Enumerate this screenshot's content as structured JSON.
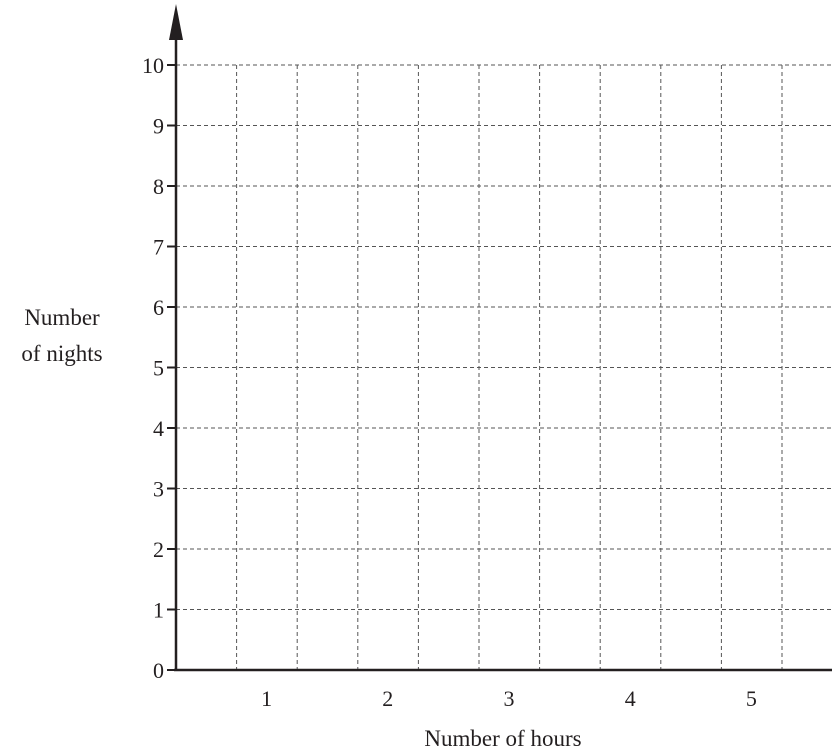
{
  "chart_data": {
    "type": "bar",
    "title": "",
    "xlabel": "Number of hours",
    "ylabel_lines": [
      "Number",
      "of nights"
    ],
    "x_ticks": [
      "1",
      "2",
      "3",
      "4",
      "5"
    ],
    "y_ticks": [
      "0",
      "1",
      "2",
      "3",
      "4",
      "5",
      "6",
      "7",
      "8",
      "9",
      "10"
    ],
    "ylim": [
      0,
      10
    ],
    "categories": [],
    "values": [],
    "grid": true,
    "grid_style": "dashed"
  }
}
